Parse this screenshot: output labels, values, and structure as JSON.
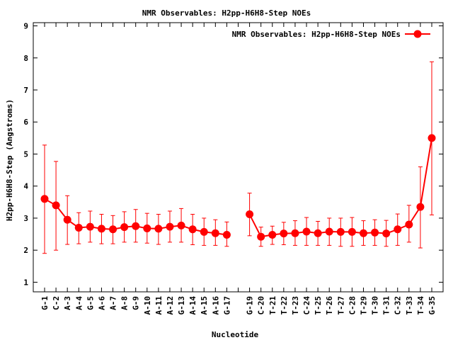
{
  "chart_data": {
    "type": "line",
    "title": "NMR Observables: H2pp-H6H8-Step NOEs",
    "xlabel": "Nucleotide",
    "ylabel": "H2pp-H6H8-Step (Angstroms)",
    "ylim": [
      0.7,
      9.1
    ],
    "yticks": [
      1,
      2,
      3,
      4,
      5,
      6,
      7,
      8,
      9
    ],
    "grid": false,
    "legend_position": "top-right",
    "color": "#ff0000",
    "categories": [
      "G-1",
      "C-2",
      "A-3",
      "A-4",
      "G-5",
      "A-6",
      "A-7",
      "A-8",
      "G-9",
      "A-10",
      "A-11",
      "A-12",
      "G-13",
      "A-14",
      "A-15",
      "A-16",
      "G-17",
      "",
      "G-19",
      "C-20",
      "T-21",
      "T-22",
      "T-23",
      "C-24",
      "T-25",
      "T-26",
      "T-27",
      "C-28",
      "T-29",
      "T-30",
      "T-31",
      "C-32",
      "T-33",
      "T-34",
      "G-35"
    ],
    "series": [
      {
        "name": "NMR Observables: H2pp-H6H8-Step NOEs",
        "values": [
          3.6,
          3.4,
          2.95,
          2.7,
          2.73,
          2.67,
          2.65,
          2.72,
          2.75,
          2.68,
          2.67,
          2.73,
          2.77,
          2.65,
          2.57,
          2.53,
          2.48,
          null,
          3.12,
          2.42,
          2.48,
          2.52,
          2.53,
          2.58,
          2.53,
          2.58,
          2.57,
          2.57,
          2.53,
          2.55,
          2.52,
          2.65,
          2.8,
          3.35,
          5.5
        ],
        "error_low": [
          1.9,
          2.0,
          2.18,
          2.2,
          2.25,
          2.2,
          2.2,
          2.25,
          2.25,
          2.22,
          2.18,
          2.25,
          2.25,
          2.17,
          2.15,
          2.15,
          2.12,
          null,
          2.45,
          2.12,
          2.18,
          2.17,
          2.15,
          2.15,
          2.15,
          2.15,
          2.12,
          2.12,
          2.15,
          2.15,
          2.12,
          2.15,
          2.25,
          2.07,
          3.1
        ],
        "error_high": [
          5.28,
          4.77,
          3.7,
          3.17,
          3.22,
          3.12,
          3.08,
          3.2,
          3.27,
          3.15,
          3.12,
          3.22,
          3.3,
          3.12,
          3.0,
          2.95,
          2.88,
          null,
          3.78,
          2.72,
          2.75,
          2.87,
          2.92,
          3.02,
          2.9,
          3.0,
          3.0,
          3.02,
          2.92,
          2.95,
          2.93,
          3.13,
          3.4,
          4.6,
          7.88
        ]
      }
    ]
  }
}
